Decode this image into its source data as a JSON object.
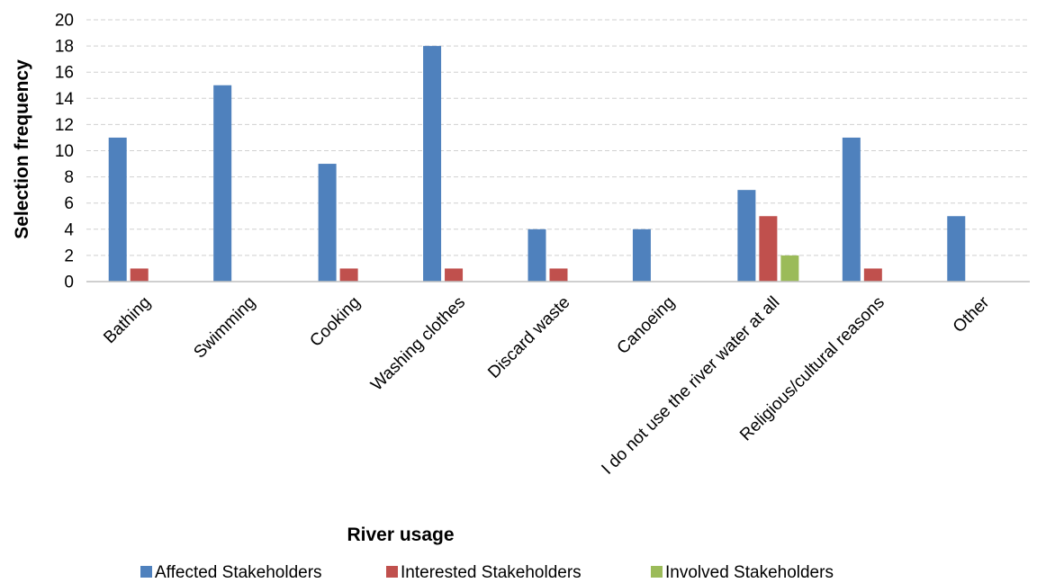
{
  "chart_data": {
    "type": "bar",
    "title": "",
    "xlabel": "River usage",
    "ylabel": "Selection frequency",
    "ylim": [
      0,
      20
    ],
    "yticks": [
      0,
      2,
      4,
      6,
      8,
      10,
      12,
      14,
      16,
      18,
      20
    ],
    "grid": true,
    "legend_position": "bottom",
    "categories": [
      "Bathing",
      "Swimming",
      "Cooking",
      "Washing clothes",
      "Discard waste",
      "Canoeing",
      "I do not use the river water at all",
      "Religious/cultural reasons",
      "Other"
    ],
    "series": [
      {
        "name": "Affected Stakeholders",
        "color": "#4F81BD",
        "values": [
          11,
          15,
          9,
          18,
          4,
          4,
          7,
          11,
          5
        ]
      },
      {
        "name": "Interested Stakeholders",
        "color": "#C0504D",
        "values": [
          1,
          0,
          1,
          1,
          1,
          0,
          5,
          1,
          0
        ]
      },
      {
        "name": "Involved Stakeholders",
        "color": "#9BBB59",
        "values": [
          0,
          0,
          0,
          0,
          0,
          0,
          2,
          0,
          0
        ]
      }
    ]
  }
}
